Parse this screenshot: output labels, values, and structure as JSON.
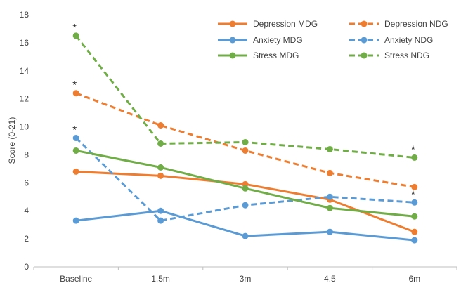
{
  "chart_data": {
    "type": "line",
    "title": "",
    "xlabel": "",
    "ylabel": "Score (0-21)",
    "categories": [
      "Baseline",
      "1.5m",
      "3m",
      "4.5",
      "6m"
    ],
    "ylim": [
      0,
      18
    ],
    "yticks": [
      0,
      2,
      4,
      6,
      8,
      10,
      12,
      14,
      16,
      18
    ],
    "grid": false,
    "legend_position": "top-right",
    "series": [
      {
        "name": "Depression MDG",
        "color": "#ED7D31",
        "dash": false,
        "values": [
          6.8,
          6.5,
          5.9,
          4.8,
          2.5
        ]
      },
      {
        "name": "Depression NDG",
        "color": "#ED7D31",
        "dash": true,
        "values": [
          12.4,
          10.1,
          8.3,
          6.7,
          5.7
        ]
      },
      {
        "name": "Anxiety MDG",
        "color": "#5B9BD5",
        "dash": false,
        "values": [
          3.3,
          4.0,
          2.2,
          2.5,
          1.9
        ]
      },
      {
        "name": "Anxiety NDG",
        "color": "#5B9BD5",
        "dash": true,
        "values": [
          9.2,
          3.3,
          4.4,
          5.0,
          4.6
        ]
      },
      {
        "name": "Stress MDG",
        "color": "#70AD47",
        "dash": false,
        "values": [
          8.3,
          7.1,
          5.6,
          4.2,
          3.6
        ]
      },
      {
        "name": "Stress NDG",
        "color": "#70AD47",
        "dash": true,
        "values": [
          16.5,
          8.8,
          8.9,
          8.4,
          7.8
        ]
      }
    ],
    "annotations": [
      {
        "text": "*",
        "x": "Baseline",
        "y": 16.5
      },
      {
        "text": "*",
        "x": "Baseline",
        "y": 12.4
      },
      {
        "text": "*",
        "x": "Baseline",
        "y": 9.2
      },
      {
        "text": "*",
        "x": "6m",
        "y": 7.8
      },
      {
        "text": "*",
        "x": "6m",
        "y": 4.6
      }
    ]
  }
}
